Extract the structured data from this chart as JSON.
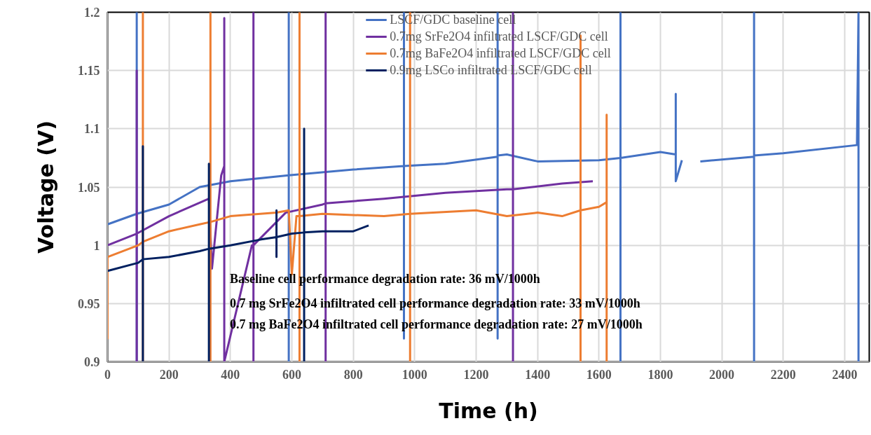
{
  "chart_data": {
    "type": "line",
    "xlabel": "Time (h)",
    "ylabel": "Voltage (V)",
    "xlim": [
      0,
      2480
    ],
    "ylim": [
      0.9,
      1.2
    ],
    "xticks": [
      0,
      200,
      400,
      600,
      800,
      1000,
      1200,
      1400,
      1600,
      1800,
      2000,
      2200,
      2400
    ],
    "yticks": [
      0.9,
      0.95,
      1,
      1.05,
      1.1,
      1.15,
      1.2
    ],
    "grid": true,
    "legend": "top",
    "line_style": "solid",
    "marker": "none",
    "series": [
      {
        "name": "LSCF/GDC baseline cell",
        "color": "#4472c4",
        "x": [
          0,
          95,
          95,
          95,
          95,
          200,
          300,
          400,
          590,
          590,
          590,
          590,
          800,
          965,
          965,
          965,
          965,
          1100,
          1270,
          1270,
          1270,
          1270,
          1300,
          1400,
          1600,
          1670,
          1670,
          1670,
          1670,
          1800,
          1850,
          1850,
          1850,
          1870,
          1900,
          1930,
          2105,
          2105,
          2105,
          2105,
          2200,
          2440,
          2445,
          2445
        ],
        "values": [
          1.018,
          1.027,
          1.2,
          0.9,
          1.027,
          1.035,
          1.05,
          1.055,
          1.06,
          1.2,
          0.9,
          1.06,
          1.065,
          1.068,
          1.2,
          0.92,
          1.068,
          1.07,
          1.076,
          1.2,
          0.92,
          1.077,
          1.078,
          1.072,
          1.073,
          1.075,
          1.2,
          0.9,
          1.075,
          1.08,
          1.078,
          1.13,
          1.055,
          1.073,
          null,
          1.072,
          1.076,
          1.2,
          0.9,
          1.077,
          1.079,
          1.086,
          1.2,
          0.9
        ]
      },
      {
        "name": "0.7mg SrFe2O4 infiltrated LSCF/GDC cell",
        "color": "#7030a0",
        "x": [
          0,
          95,
          95,
          95,
          95,
          200,
          330,
          340,
          370,
          380,
          380,
          380,
          470,
          475,
          475,
          475,
          475,
          580,
          700,
          710,
          710,
          710,
          710,
          900,
          1100,
          1300,
          1320,
          1320,
          1320,
          1320,
          1480,
          1580
        ],
        "values": [
          1.0,
          1.01,
          1.15,
          0.9,
          1.01,
          1.025,
          1.04,
          0.98,
          1.06,
          1.068,
          1.195,
          0.9,
          1.0,
          1.0,
          1.2,
          0.9,
          1.0,
          1.028,
          1.035,
          1.036,
          1.2,
          0.9,
          1.036,
          1.04,
          1.045,
          1.048,
          1.048,
          1.2,
          0.9,
          1.048,
          1.053,
          1.055
        ]
      },
      {
        "name": "0.7mg BaFe2O4 infiltrated LSCF/GDC cell",
        "color": "#ed7d31",
        "x": [
          0,
          0,
          0,
          100,
          115,
          115,
          115,
          115,
          200,
          300,
          335,
          335,
          335,
          335,
          400,
          550,
          590,
          600,
          615,
          625,
          625,
          625,
          625,
          700,
          900,
          985,
          985,
          985,
          985,
          1200,
          1300,
          1400,
          1480,
          1540,
          1540,
          1540,
          1540,
          1600,
          1625,
          1625,
          1625
        ],
        "values": [
          0.99,
          0.92,
          0.99,
          1.0,
          1.003,
          1.2,
          0.9,
          1.003,
          1.012,
          1.018,
          1.02,
          1.2,
          0.9,
          1.02,
          1.025,
          1.028,
          1.03,
          0.975,
          1.025,
          1.025,
          1.2,
          0.9,
          1.025,
          1.027,
          1.025,
          1.027,
          1.2,
          0.9,
          1.027,
          1.03,
          1.025,
          1.028,
          1.025,
          1.03,
          1.18,
          0.9,
          1.03,
          1.033,
          1.037,
          1.112,
          0.9
        ]
      },
      {
        "name": "0.9mg LSCo infiltrated LSCF/GDC cell",
        "color": "#002060",
        "x": [
          0,
          100,
          115,
          115,
          115,
          115,
          200,
          300,
          330,
          330,
          330,
          330,
          400,
          500,
          550,
          550,
          550,
          550,
          600,
          640,
          640,
          640,
          640,
          700,
          800,
          850
        ],
        "values": [
          0.978,
          0.985,
          0.988,
          1.085,
          0.9,
          0.988,
          0.99,
          0.995,
          0.997,
          1.07,
          0.9,
          0.997,
          1.0,
          1.005,
          1.007,
          1.03,
          0.99,
          1.007,
          1.01,
          1.011,
          1.1,
          0.9,
          1.011,
          1.012,
          1.012,
          1.017
        ]
      }
    ],
    "annotations": [
      "Baseline cell performance degradation rate: 36 mV/1000h",
      "0.7 mg SrFe2O4 infiltrated cell performance degradation rate: 33 mV/1000h",
      "0.7 mg BaFe2O4 infiltrated cell performance degradation rate: 27 mV/1000h"
    ]
  }
}
